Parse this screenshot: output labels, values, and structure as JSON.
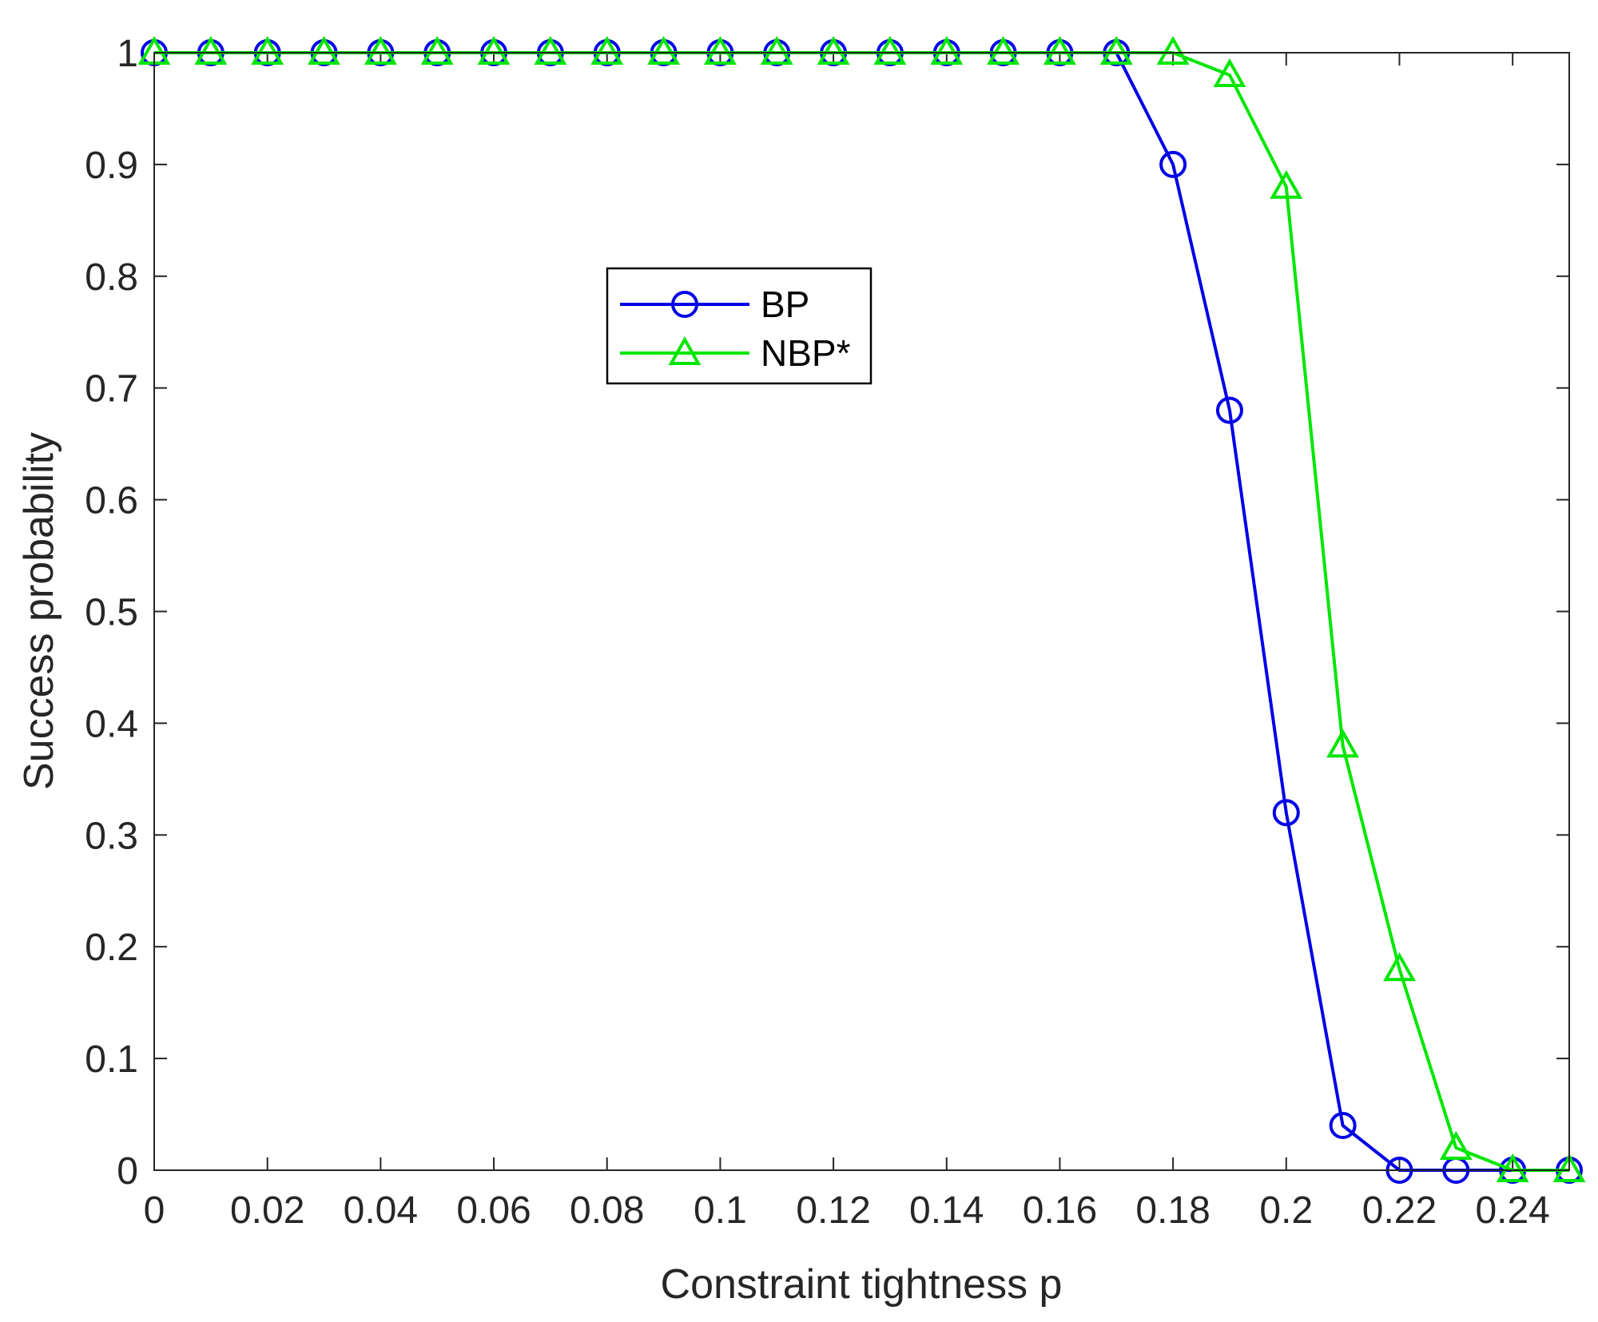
{
  "chart_data": {
    "type": "line",
    "xlabel": "Constraint tightness p",
    "ylabel": "Success probability",
    "xlim": [
      0,
      0.25
    ],
    "ylim": [
      0,
      1
    ],
    "grid": false,
    "legend_position": "upper-center-left",
    "x_ticks": [
      "0",
      "0.02",
      "0.04",
      "0.06",
      "0.08",
      "0.1",
      "0.12",
      "0.14",
      "0.16",
      "0.18",
      "0.2",
      "0.22",
      "0.24"
    ],
    "y_ticks": [
      "0",
      "0.1",
      "0.2",
      "0.3",
      "0.4",
      "0.5",
      "0.6",
      "0.7",
      "0.8",
      "0.9",
      "1"
    ],
    "x": [
      0,
      0.01,
      0.02,
      0.03,
      0.04,
      0.05,
      0.06,
      0.07,
      0.08,
      0.09,
      0.1,
      0.11,
      0.12,
      0.13,
      0.14,
      0.15,
      0.16,
      0.17,
      0.18,
      0.19,
      0.2,
      0.21,
      0.22,
      0.23,
      0.24,
      0.25
    ],
    "series": [
      {
        "name": "BP",
        "color": "#0000e6",
        "marker": "circle",
        "values": [
          1,
          1,
          1,
          1,
          1,
          1,
          1,
          1,
          1,
          1,
          1,
          1,
          1,
          1,
          1,
          1,
          1,
          1,
          0.9,
          0.68,
          0.32,
          0.04,
          0,
          0,
          0,
          0
        ]
      },
      {
        "name": "NBP*",
        "color": "#00e600",
        "marker": "triangle",
        "values": [
          1,
          1,
          1,
          1,
          1,
          1,
          1,
          1,
          1,
          1,
          1,
          1,
          1,
          1,
          1,
          1,
          1,
          1,
          1,
          0.98,
          0.88,
          0.38,
          0.18,
          0.02,
          0,
          0
        ]
      }
    ]
  }
}
